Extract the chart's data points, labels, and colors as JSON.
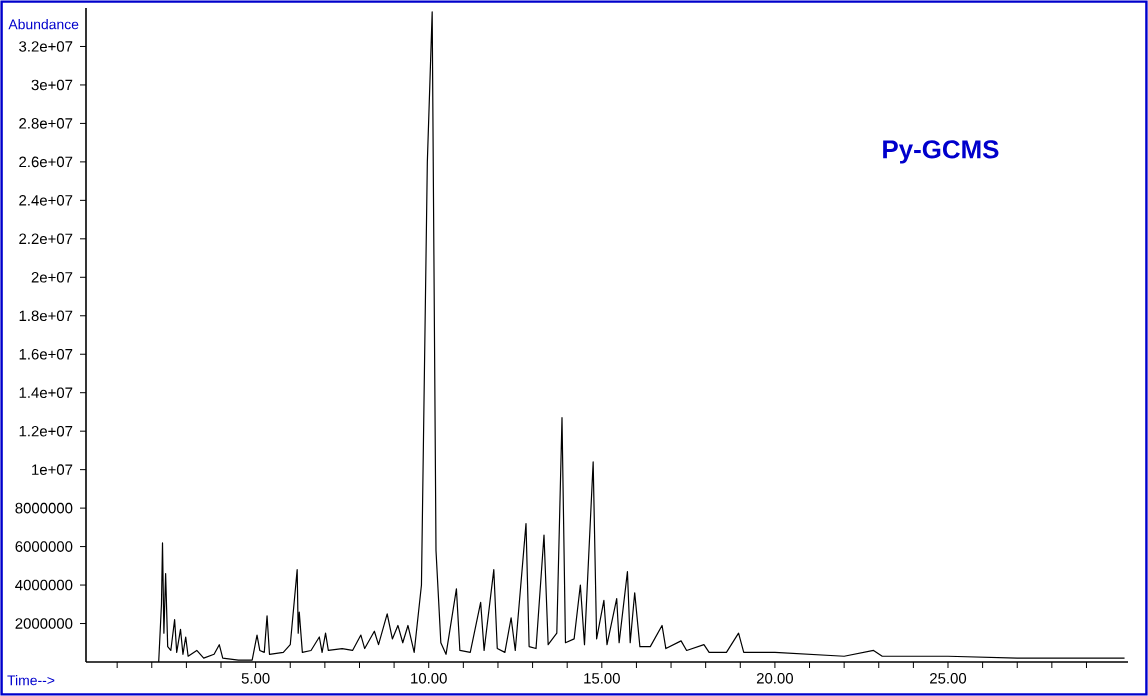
{
  "chart_data": {
    "type": "line",
    "xlabel": "Time-->",
    "ylabel": "Abundance",
    "annotations": [
      "Py-GCMS"
    ],
    "color": "#000000",
    "xlim": [
      0.1,
      30.2
    ],
    "ylim": [
      0,
      34000000
    ],
    "xticks": [
      {
        "value": 1,
        "label": null
      },
      {
        "value": 2,
        "label": null
      },
      {
        "value": 3,
        "label": null
      },
      {
        "value": 4,
        "label": null
      },
      {
        "value": 5,
        "label": "5.00"
      },
      {
        "value": 6,
        "label": null
      },
      {
        "value": 7,
        "label": null
      },
      {
        "value": 8,
        "label": null
      },
      {
        "value": 9,
        "label": null
      },
      {
        "value": 10,
        "label": "10.00"
      },
      {
        "value": 11,
        "label": null
      },
      {
        "value": 12,
        "label": null
      },
      {
        "value": 13,
        "label": null
      },
      {
        "value": 14,
        "label": null
      },
      {
        "value": 15,
        "label": "15.00"
      },
      {
        "value": 16,
        "label": null
      },
      {
        "value": 17,
        "label": null
      },
      {
        "value": 18,
        "label": null
      },
      {
        "value": 19,
        "label": null
      },
      {
        "value": 20,
        "label": "20.00"
      },
      {
        "value": 21,
        "label": null
      },
      {
        "value": 22,
        "label": null
      },
      {
        "value": 23,
        "label": null
      },
      {
        "value": 24,
        "label": null
      },
      {
        "value": 25,
        "label": "25.00"
      },
      {
        "value": 26,
        "label": null
      },
      {
        "value": 27,
        "label": null
      },
      {
        "value": 28,
        "label": null
      },
      {
        "value": 29,
        "label": null
      }
    ],
    "yticks": [
      2000000,
      4000000,
      6000000,
      8000000,
      {
        "value": 10000000,
        "label": "1e+07"
      },
      {
        "value": 12000000,
        "label": "1.2e+07"
      },
      {
        "value": 14000000,
        "label": "1.4e+07"
      },
      {
        "value": 16000000,
        "label": "1.6e+07"
      },
      {
        "value": 18000000,
        "label": "1.8e+07"
      },
      {
        "value": 20000000,
        "label": "2e+07"
      },
      {
        "value": 22000000,
        "label": "2.2e+07"
      },
      {
        "value": 24000000,
        "label": "2.4e+07"
      },
      {
        "value": 26000000,
        "label": "2.6e+07"
      },
      {
        "value": 28000000,
        "label": "2.8e+07"
      },
      {
        "value": 30000000,
        "label": "3e+07"
      },
      {
        "value": 32000000,
        "label": "3.2e+07"
      }
    ],
    "x": [
      2.2,
      2.28,
      2.31,
      2.35,
      2.4,
      2.46,
      2.55,
      2.66,
      2.72,
      2.83,
      2.9,
      2.98,
      3.05,
      3.3,
      3.5,
      3.8,
      3.95,
      4.05,
      4.5,
      4.9,
      5.04,
      5.12,
      5.25,
      5.33,
      5.4,
      5.8,
      6.0,
      6.2,
      6.23,
      6.26,
      6.35,
      6.6,
      6.84,
      6.92,
      7.02,
      7.1,
      7.5,
      7.8,
      8.04,
      8.15,
      8.43,
      8.55,
      8.8,
      8.95,
      9.11,
      9.25,
      9.4,
      9.58,
      9.79,
      9.96,
      10.1,
      10.21,
      10.35,
      10.5,
      10.8,
      10.9,
      11.2,
      11.5,
      11.6,
      11.88,
      11.98,
      12.2,
      12.38,
      12.5,
      12.81,
      12.9,
      13.1,
      13.33,
      13.45,
      13.7,
      13.85,
      13.95,
      14.2,
      14.38,
      14.5,
      14.75,
      14.85,
      15.06,
      15.15,
      15.43,
      15.5,
      15.74,
      15.82,
      15.95,
      16.1,
      16.4,
      16.74,
      16.85,
      17.29,
      17.45,
      17.95,
      18.1,
      18.6,
      18.95,
      19.1,
      20,
      21,
      22,
      22.85,
      23.1,
      25,
      27,
      30.1
    ],
    "values": [
      0,
      3000000,
      6200000,
      1500000,
      4600000,
      800000,
      600000,
      2200000,
      500000,
      1700000,
      400000,
      1300000,
      300000,
      600000,
      200000,
      400000,
      900000,
      200000,
      100000,
      100000,
      1400000,
      600000,
      500000,
      2400000,
      400000,
      500000,
      900000,
      4800000,
      1500000,
      2600000,
      500000,
      600000,
      1300000,
      500000,
      1500000,
      600000,
      700000,
      600000,
      1400000,
      700000,
      1600000,
      900000,
      2500000,
      1200000,
      1900000,
      1000000,
      1900000,
      500000,
      4000000,
      26000000,
      33800000,
      5800000,
      1000000,
      400000,
      3800000,
      600000,
      500000,
      3100000,
      600000,
      4800000,
      700000,
      500000,
      2300000,
      600000,
      7200000,
      800000,
      700000,
      6600000,
      900000,
      1500000,
      12700000,
      1000000,
      1200000,
      4000000,
      900000,
      10400000,
      1200000,
      3200000,
      900000,
      3300000,
      1000000,
      4700000,
      1000000,
      3600000,
      800000,
      800000,
      1900000,
      700000,
      1100000,
      600000,
      900000,
      500000,
      500000,
      1500000,
      500000,
      500000,
      400000,
      300000,
      600000,
      300000,
      300000,
      200000,
      200000
    ]
  }
}
